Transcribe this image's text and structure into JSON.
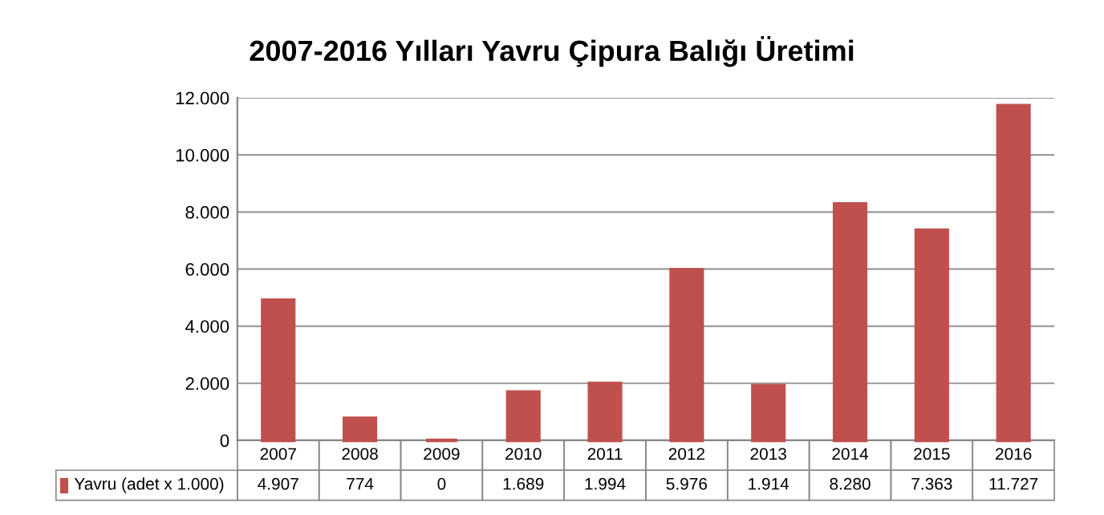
{
  "chart_data": {
    "type": "bar",
    "title": "2007-2016 Yılları Yavru Çipura Balığı Üretimi",
    "categories": [
      "2007",
      "2008",
      "2009",
      "2010",
      "2011",
      "2012",
      "2013",
      "2014",
      "2015",
      "2016"
    ],
    "series": [
      {
        "name": "Yavru (adet x 1.000)",
        "color": "#c0504d",
        "values": [
          4907,
          774,
          0,
          1689,
          1994,
          5976,
          1914,
          8280,
          7363,
          11727
        ],
        "value_labels": [
          "4.907",
          "774",
          "0",
          "1.689",
          "1.994",
          "5.976",
          "1.914",
          "8.280",
          "7.363",
          "11.727"
        ]
      }
    ],
    "ylim": [
      0,
      12000
    ],
    "yticks": [
      0,
      {
        "value": 2000,
        "label": "2.000"
      },
      {
        "value": 4000,
        "label": "4.000"
      },
      {
        "value": 6000,
        "label": "6.000"
      },
      {
        "value": 8000,
        "label": "8.000"
      },
      {
        "value": 10000,
        "label": "10.000"
      },
      {
        "value": 12000,
        "label": "12.000"
      }
    ],
    "grid": "y",
    "legend": "bottom"
  }
}
